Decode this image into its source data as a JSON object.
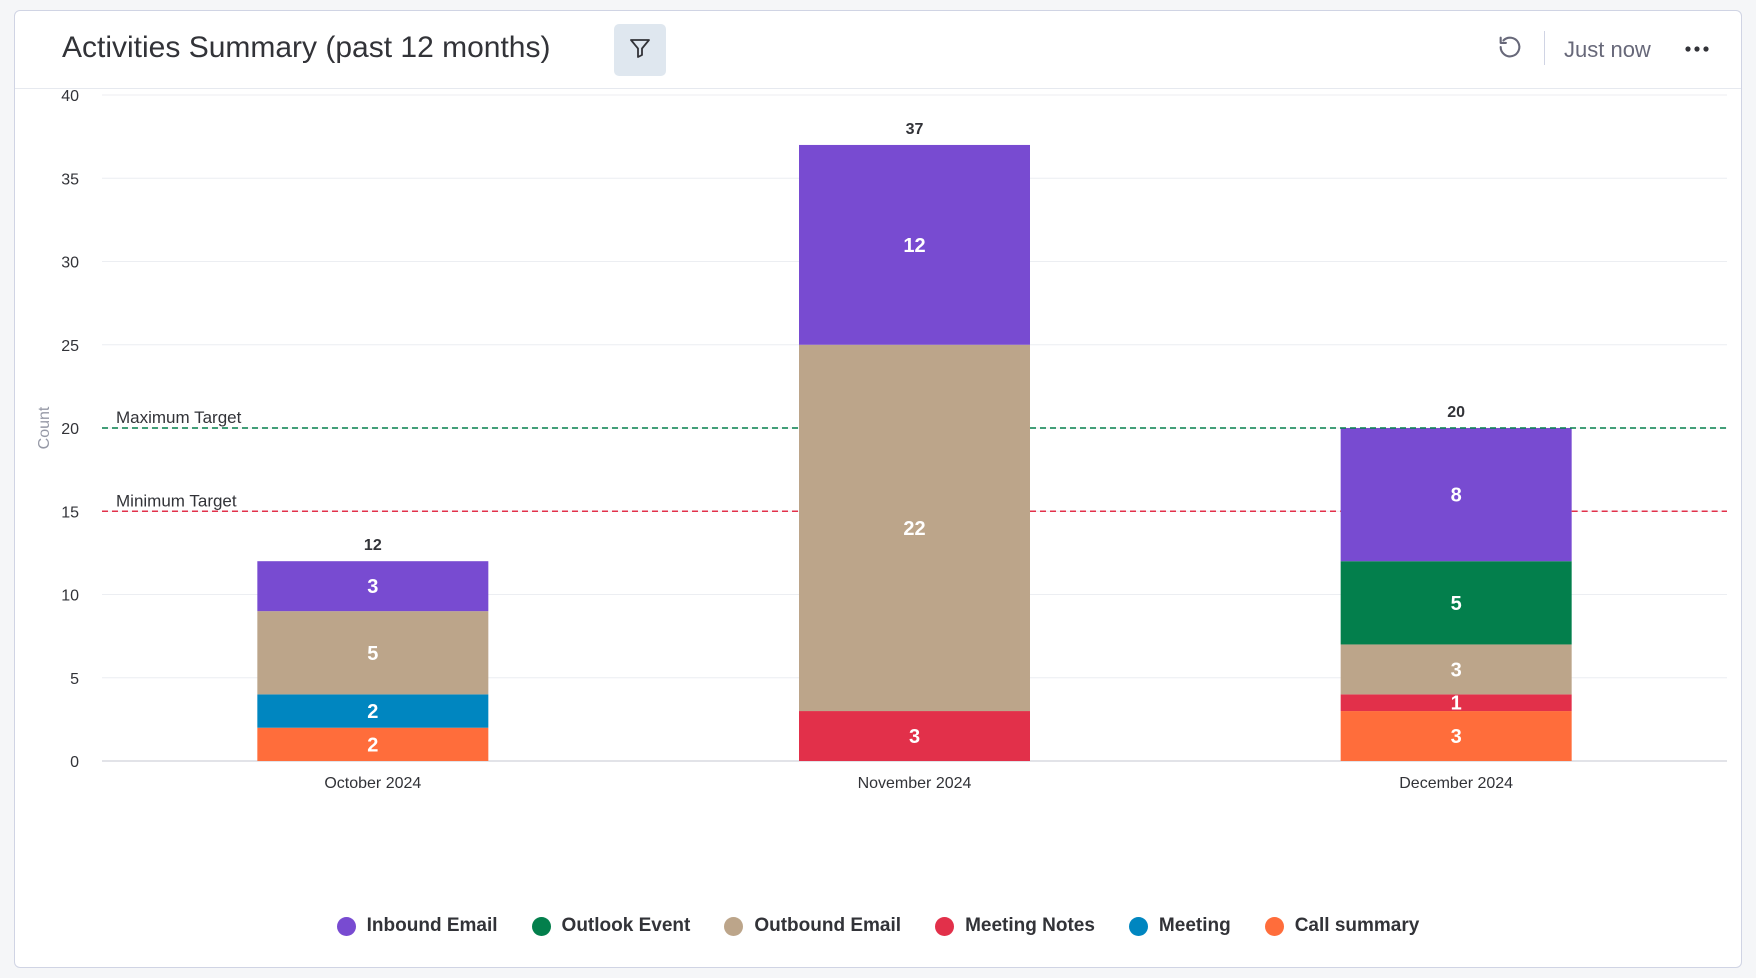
{
  "header": {
    "title": "Activities Summary (past 12 months)",
    "updated": "Just now"
  },
  "icons": {
    "filter": "filter-icon",
    "refresh": "refresh-icon",
    "more": "more-horizontal-icon"
  },
  "colors": {
    "Inbound Email": "#784bd1",
    "Outlook Event": "#037f4c",
    "Outbound Email": "#bca58a",
    "Meeting Notes": "#e2304a",
    "Meeting": "#0086c0",
    "Call summary": "#ff6d3b",
    "max_target": "#037f4c",
    "min_target": "#e2304a"
  },
  "chart_data": {
    "type": "bar",
    "stacked": true,
    "ylabel": "Count",
    "ylim": [
      0,
      40
    ],
    "yticks": [
      0,
      5,
      10,
      15,
      20,
      25,
      30,
      35,
      40
    ],
    "grid": true,
    "legend_position": "bottom",
    "categories": [
      "October 2024",
      "November 2024",
      "December 2024"
    ],
    "series": [
      {
        "name": "Call summary",
        "values": [
          2,
          0,
          3
        ]
      },
      {
        "name": "Meeting",
        "values": [
          2,
          0,
          0
        ]
      },
      {
        "name": "Meeting Notes",
        "values": [
          0,
          3,
          1
        ]
      },
      {
        "name": "Outbound Email",
        "values": [
          5,
          22,
          3
        ]
      },
      {
        "name": "Outlook Event",
        "values": [
          0,
          0,
          5
        ]
      },
      {
        "name": "Inbound Email",
        "values": [
          3,
          12,
          8
        ]
      }
    ],
    "totals": [
      12,
      37,
      20
    ],
    "reference_lines": [
      {
        "label": "Maximum Target",
        "value": 20
      },
      {
        "label": "Minimum Target",
        "value": 15
      }
    ],
    "legend_order": [
      "Inbound Email",
      "Outlook Event",
      "Outbound Email",
      "Meeting Notes",
      "Meeting",
      "Call summary"
    ]
  }
}
